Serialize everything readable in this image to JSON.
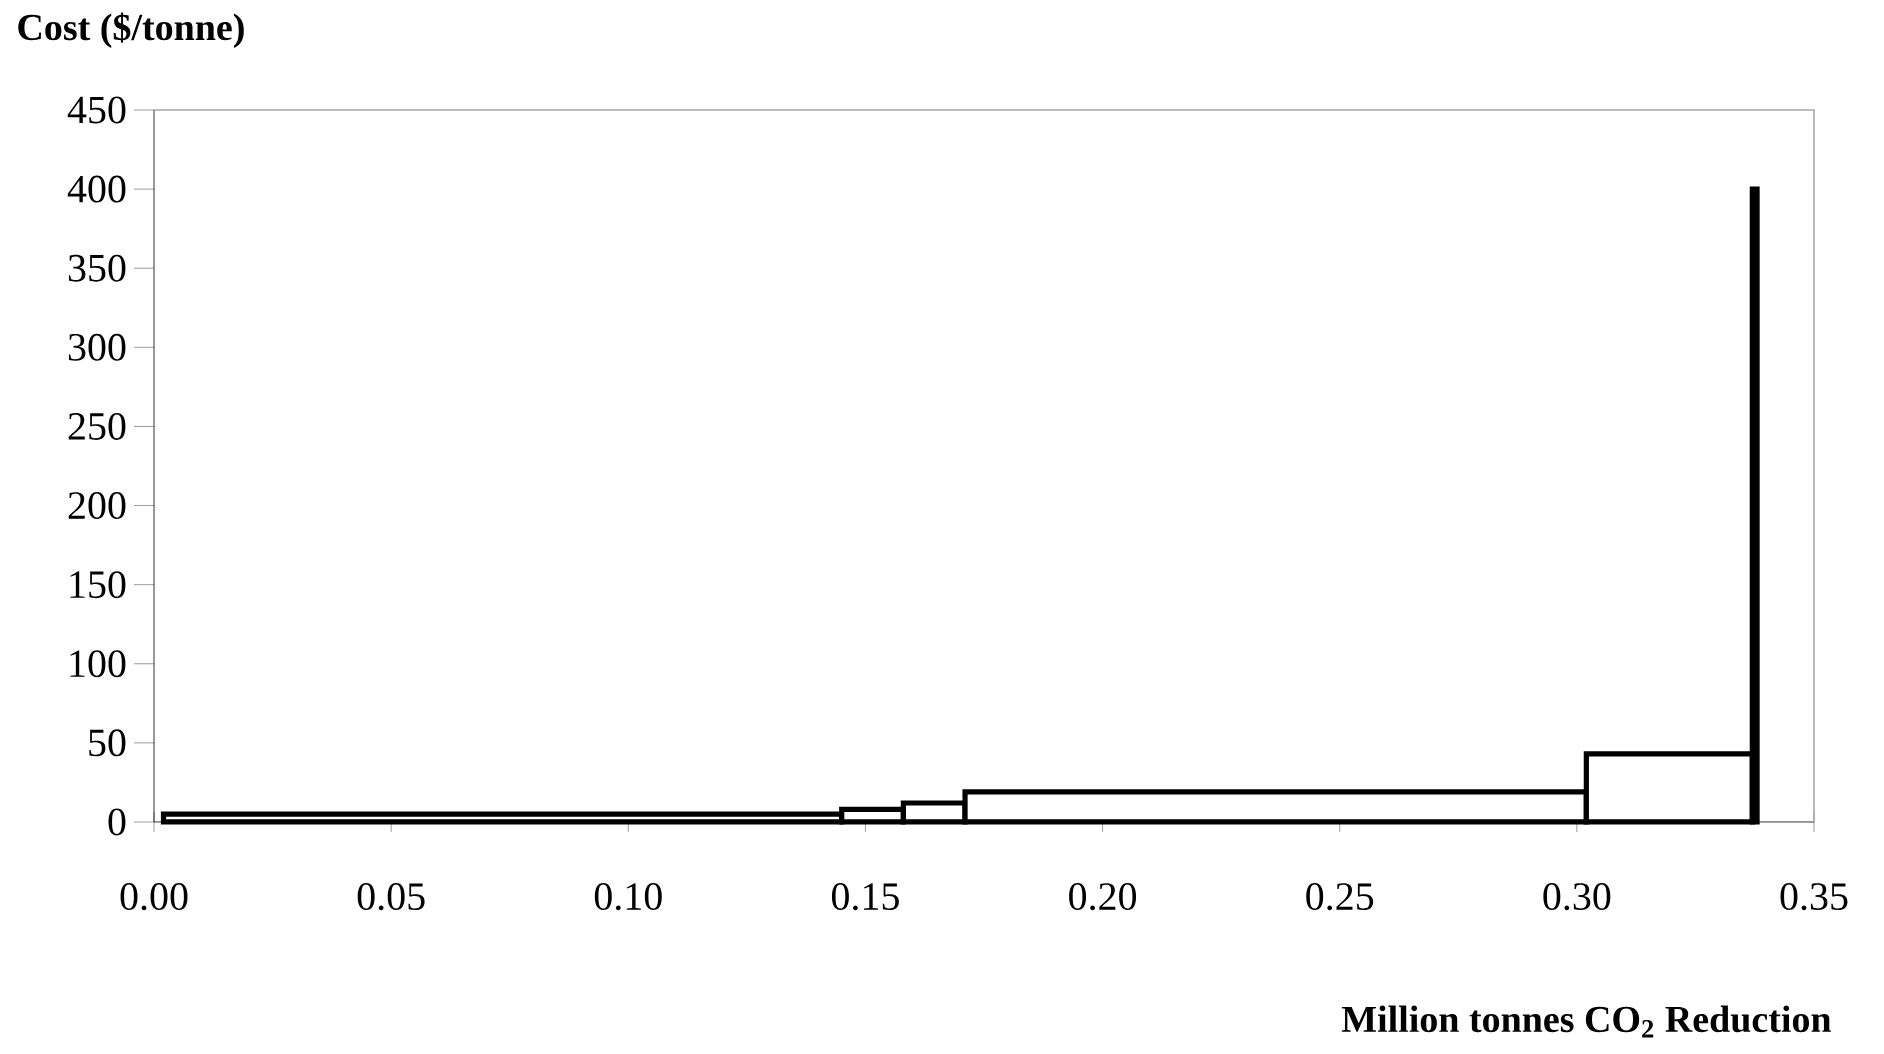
{
  "chart_data": {
    "type": "histogram",
    "xlabel": "Million tonnes CO$_{2}$ Reduction",
    "ylabel": "Cost ($/tonne)",
    "bins": [
      0.002,
      0.145,
      0.158,
      0.171,
      0.302,
      0.337,
      0.338
    ],
    "values": [
      5,
      8,
      12,
      19,
      43,
      400
    ],
    "color": "#000000",
    "xlim": [
      0,
      0.35
    ],
    "ylim": [
      0,
      450
    ],
    "xticks": [
      {
        "value": 0,
        "label": "0.00"
      },
      {
        "value": 0.05,
        "label": "0.05"
      },
      {
        "value": 0.1,
        "label": "0.10"
      },
      {
        "value": 0.15,
        "label": "0.15"
      },
      {
        "value": 0.2,
        "label": "0.20"
      },
      {
        "value": 0.25,
        "label": "0.25"
      },
      {
        "value": 0.3,
        "label": "0.30"
      },
      {
        "value": 0.35,
        "label": "0.35"
      }
    ],
    "yticks": [
      0,
      50,
      100,
      150,
      200,
      250,
      300,
      350,
      400,
      450
    ]
  }
}
